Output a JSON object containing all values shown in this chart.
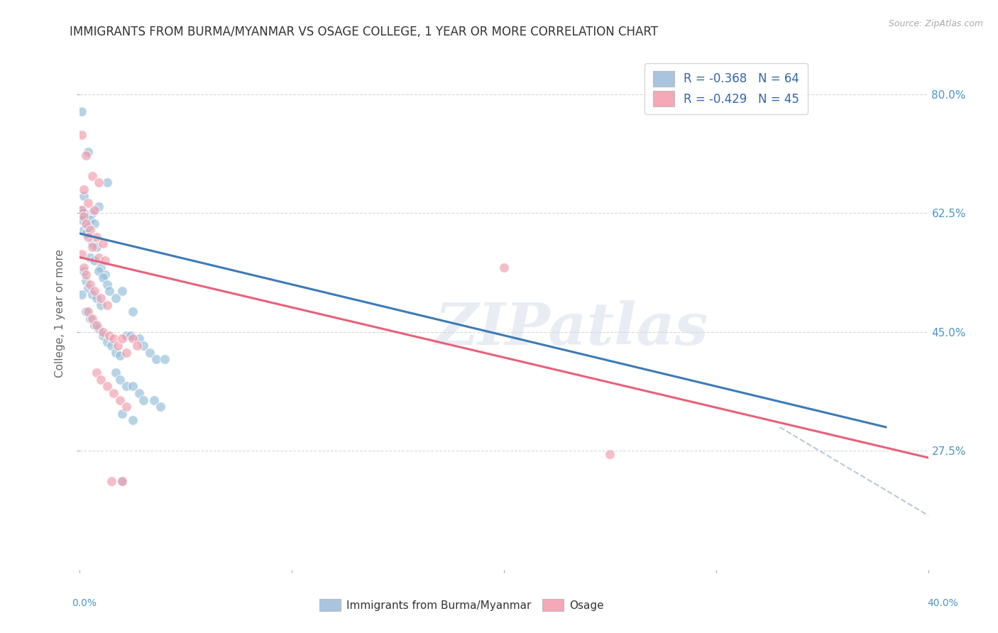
{
  "title": "IMMIGRANTS FROM BURMA/MYANMAR VS OSAGE COLLEGE, 1 YEAR OR MORE CORRELATION CHART",
  "source": "Source: ZipAtlas.com",
  "ylabel": "College, 1 year or more",
  "watermark": "ZIPatlas",
  "legend_upper": {
    "series1_label": "R = -0.368   N = 64",
    "series2_label": "R = -0.429   N = 45",
    "series1_color": "#aac4e0",
    "series2_color": "#f4a8b8"
  },
  "legend_bottom_labels": [
    "Immigrants from Burma/Myanmar",
    "Osage"
  ],
  "xlim": [
    0.0,
    0.4
  ],
  "ylim": [
    0.1,
    0.855
  ],
  "yticks": [
    0.275,
    0.45,
    0.625,
    0.8
  ],
  "ytick_labels": [
    "27.5%",
    "45.0%",
    "62.5%",
    "80.0%"
  ],
  "blue_scatter": [
    [
      0.001,
      0.775
    ],
    [
      0.004,
      0.715
    ],
    [
      0.013,
      0.67
    ],
    [
      0.002,
      0.65
    ],
    [
      0.001,
      0.63
    ],
    [
      0.006,
      0.625
    ],
    [
      0.009,
      0.635
    ],
    [
      0.003,
      0.62
    ],
    [
      0.005,
      0.615
    ],
    [
      0.002,
      0.6
    ],
    [
      0.007,
      0.61
    ],
    [
      0.004,
      0.605
    ],
    [
      0.001,
      0.625
    ],
    [
      0.002,
      0.625
    ],
    [
      0.001,
      0.62
    ],
    [
      0.001,
      0.615
    ],
    [
      0.003,
      0.595
    ],
    [
      0.006,
      0.58
    ],
    [
      0.008,
      0.575
    ],
    [
      0.005,
      0.56
    ],
    [
      0.007,
      0.555
    ],
    [
      0.01,
      0.545
    ],
    [
      0.012,
      0.535
    ],
    [
      0.009,
      0.54
    ],
    [
      0.011,
      0.53
    ],
    [
      0.013,
      0.52
    ],
    [
      0.014,
      0.51
    ],
    [
      0.003,
      0.525
    ],
    [
      0.004,
      0.515
    ],
    [
      0.006,
      0.505
    ],
    [
      0.008,
      0.5
    ],
    [
      0.01,
      0.49
    ],
    [
      0.002,
      0.54
    ],
    [
      0.001,
      0.505
    ],
    [
      0.003,
      0.48
    ],
    [
      0.005,
      0.47
    ],
    [
      0.007,
      0.46
    ],
    [
      0.009,
      0.455
    ],
    [
      0.011,
      0.445
    ],
    [
      0.013,
      0.435
    ],
    [
      0.015,
      0.43
    ],
    [
      0.017,
      0.42
    ],
    [
      0.019,
      0.415
    ],
    [
      0.017,
      0.5
    ],
    [
      0.02,
      0.51
    ],
    [
      0.025,
      0.48
    ],
    [
      0.022,
      0.445
    ],
    [
      0.024,
      0.445
    ],
    [
      0.028,
      0.44
    ],
    [
      0.03,
      0.43
    ],
    [
      0.033,
      0.42
    ],
    [
      0.036,
      0.41
    ],
    [
      0.04,
      0.41
    ],
    [
      0.017,
      0.39
    ],
    [
      0.019,
      0.38
    ],
    [
      0.022,
      0.37
    ],
    [
      0.025,
      0.37
    ],
    [
      0.028,
      0.36
    ],
    [
      0.03,
      0.35
    ],
    [
      0.035,
      0.35
    ],
    [
      0.038,
      0.34
    ],
    [
      0.02,
      0.33
    ],
    [
      0.025,
      0.32
    ],
    [
      0.02,
      0.23
    ]
  ],
  "pink_scatter": [
    [
      0.001,
      0.74
    ],
    [
      0.003,
      0.71
    ],
    [
      0.006,
      0.68
    ],
    [
      0.009,
      0.67
    ],
    [
      0.002,
      0.66
    ],
    [
      0.004,
      0.64
    ],
    [
      0.007,
      0.63
    ],
    [
      0.001,
      0.63
    ],
    [
      0.002,
      0.62
    ],
    [
      0.003,
      0.61
    ],
    [
      0.005,
      0.6
    ],
    [
      0.008,
      0.59
    ],
    [
      0.011,
      0.58
    ],
    [
      0.004,
      0.59
    ],
    [
      0.006,
      0.575
    ],
    [
      0.009,
      0.56
    ],
    [
      0.012,
      0.555
    ],
    [
      0.001,
      0.565
    ],
    [
      0.002,
      0.545
    ],
    [
      0.003,
      0.535
    ],
    [
      0.005,
      0.52
    ],
    [
      0.007,
      0.51
    ],
    [
      0.01,
      0.5
    ],
    [
      0.013,
      0.49
    ],
    [
      0.004,
      0.48
    ],
    [
      0.006,
      0.47
    ],
    [
      0.008,
      0.46
    ],
    [
      0.011,
      0.45
    ],
    [
      0.014,
      0.445
    ],
    [
      0.016,
      0.44
    ],
    [
      0.018,
      0.43
    ],
    [
      0.02,
      0.44
    ],
    [
      0.022,
      0.42
    ],
    [
      0.025,
      0.44
    ],
    [
      0.027,
      0.43
    ],
    [
      0.008,
      0.39
    ],
    [
      0.01,
      0.38
    ],
    [
      0.013,
      0.37
    ],
    [
      0.016,
      0.36
    ],
    [
      0.019,
      0.35
    ],
    [
      0.022,
      0.34
    ],
    [
      0.015,
      0.23
    ],
    [
      0.02,
      0.23
    ],
    [
      0.2,
      0.545
    ],
    [
      0.25,
      0.27
    ]
  ],
  "blue_line": {
    "x0": 0.0,
    "y0": 0.595,
    "x1": 0.38,
    "y1": 0.31
  },
  "pink_line": {
    "x0": 0.0,
    "y0": 0.56,
    "x1": 0.4,
    "y1": 0.265
  },
  "blue_dash_line": {
    "x0": 0.33,
    "y0": 0.31,
    "x1": 0.4,
    "y1": 0.18
  },
  "background_color": "#ffffff",
  "grid_color": "#d8d8d8",
  "title_fontsize": 12,
  "scatter_size": 100,
  "blue_color": "#91bcd9",
  "pink_color": "#f09aaa",
  "blue_line_color": "#3d7ab5",
  "pink_line_color": "#e8607a",
  "dash_line_color": "#b8c8d8",
  "tick_label_color": "#4d94c5",
  "axis_label_color": "#666666"
}
